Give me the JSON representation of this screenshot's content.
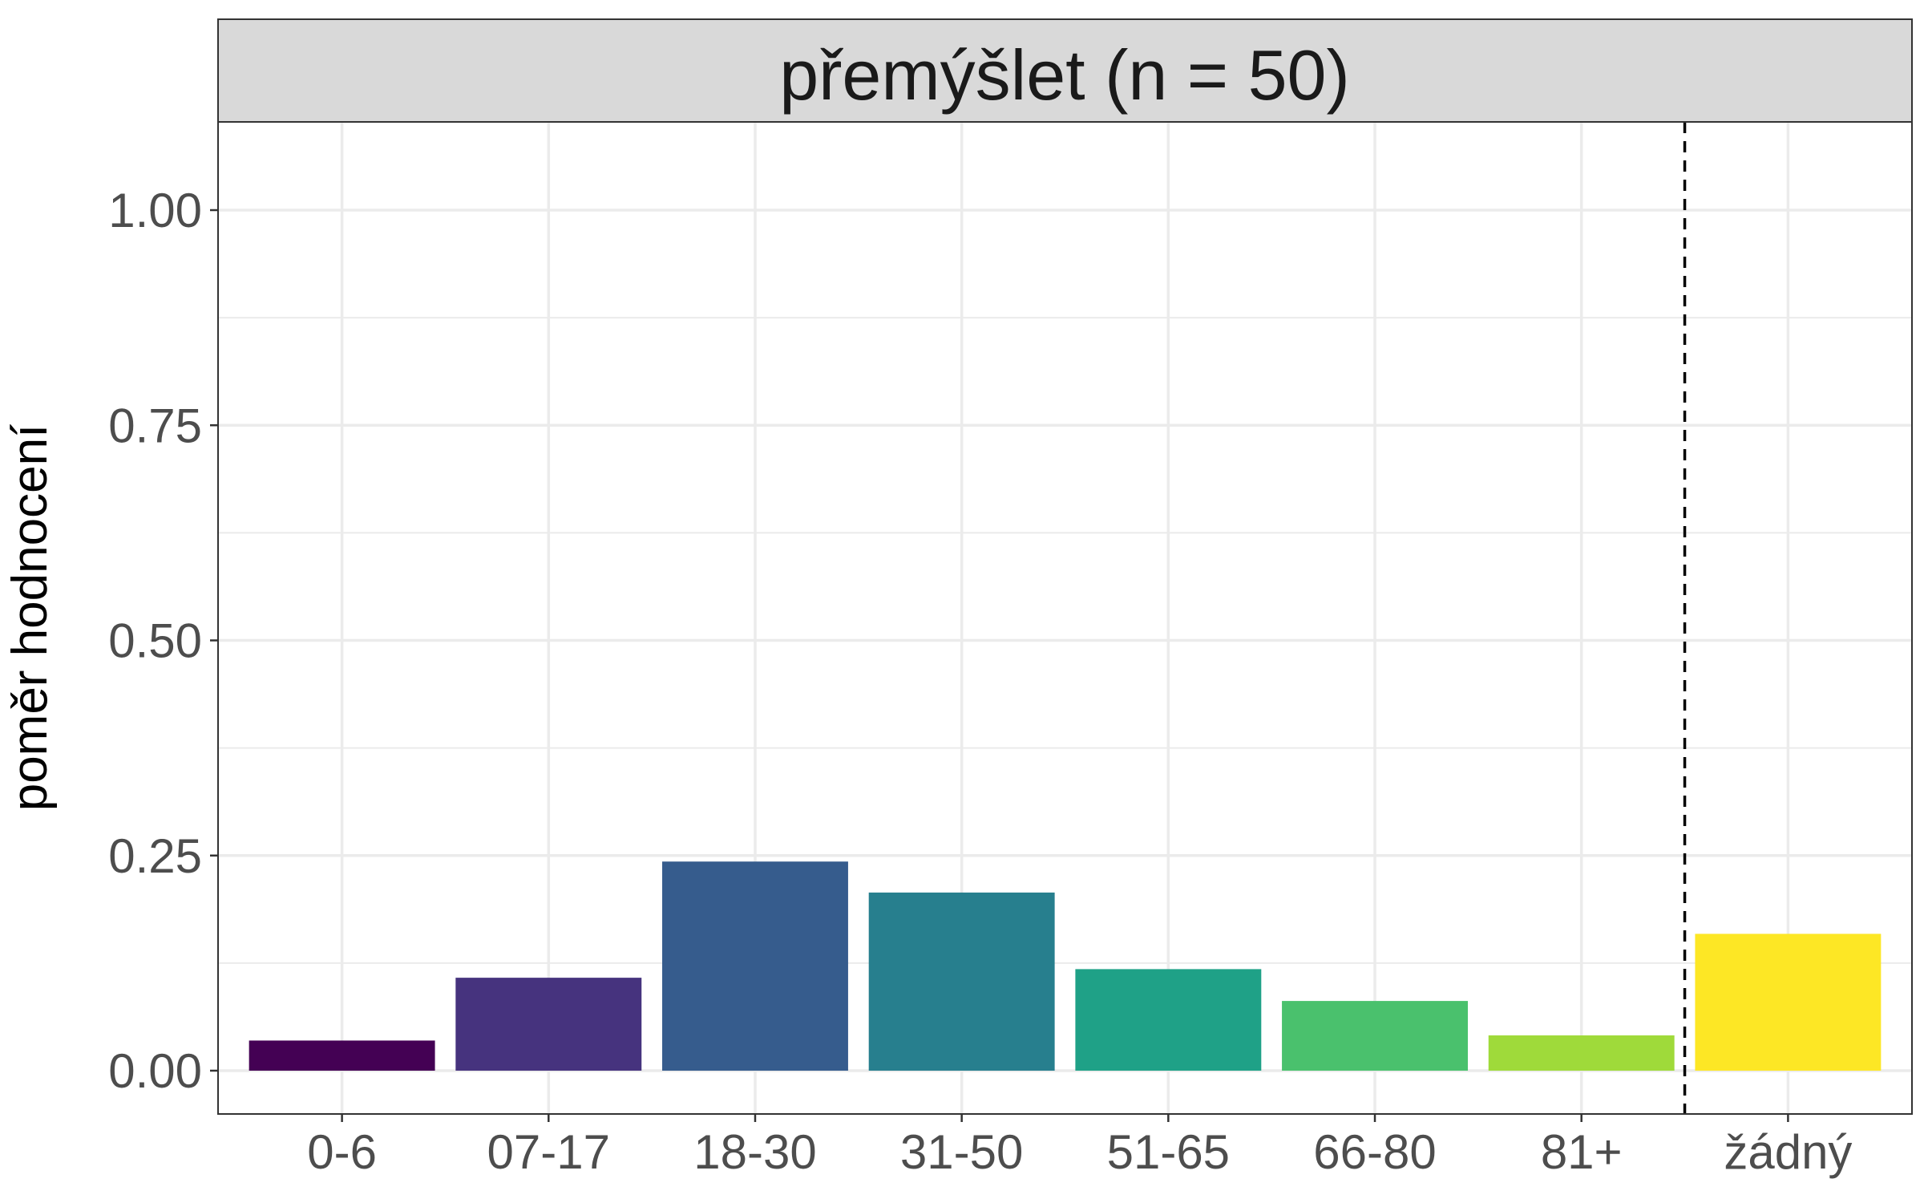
{
  "chart_data": {
    "type": "bar",
    "title": "přemýšlet (n = 50)",
    "xlabel": "",
    "ylabel": "poměr hodnocení",
    "categories": [
      "0-6",
      "07-17",
      "18-30",
      "31-50",
      "51-65",
      "66-80",
      "81+",
      "žádný"
    ],
    "values": [
      0.035,
      0.108,
      0.243,
      0.207,
      0.118,
      0.081,
      0.041,
      0.159
    ],
    "colors": [
      "#440154",
      "#46337E",
      "#365C8D",
      "#277F8E",
      "#1FA187",
      "#4AC16D",
      "#9FDA3A",
      "#FDE725"
    ],
    "ylim": [
      -0.05,
      1.1
    ],
    "yticks": [
      "0.00",
      "0.25",
      "0.50",
      "0.75",
      "1.00"
    ],
    "ytick_values": [
      0,
      0.25,
      0.5,
      0.75,
      1.0
    ],
    "reference_line": {
      "between": [
        "81+",
        "žádný"
      ],
      "style": "dashed"
    },
    "grid": true,
    "strip_color": "#d9d9d9"
  }
}
